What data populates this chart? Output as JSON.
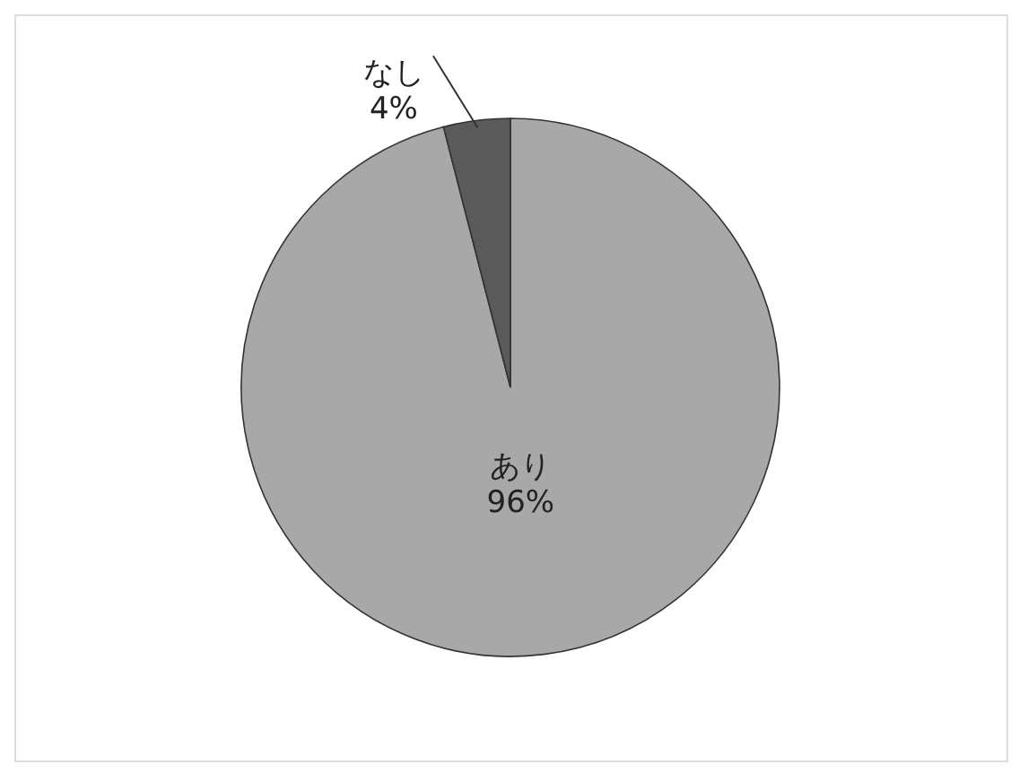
{
  "chart_data": {
    "type": "pie",
    "categories": [
      "あり",
      "なし"
    ],
    "values": [
      96,
      4
    ],
    "value_labels": [
      "96%",
      "4%"
    ],
    "colors": [
      "#a8a8a8",
      "#5a5a5a"
    ],
    "legend": false
  }
}
